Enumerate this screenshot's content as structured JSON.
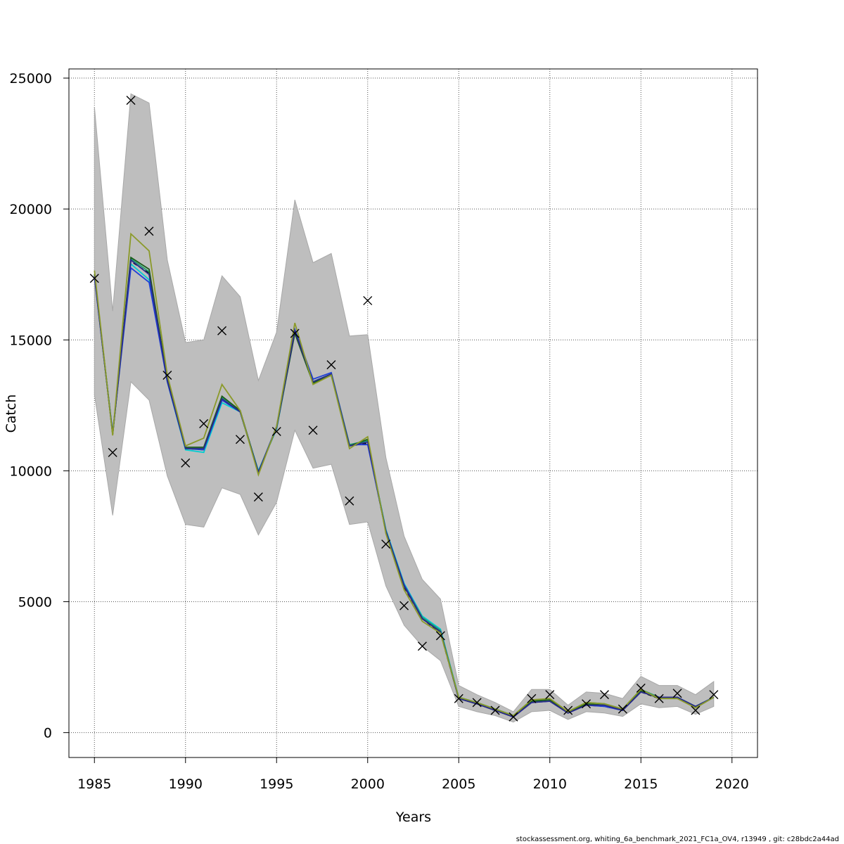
{
  "chart_data": {
    "type": "line",
    "xlabel": "Years",
    "ylabel": "Catch",
    "xlim": [
      1983.6,
      2021.4
    ],
    "ylim": [
      -950,
      25350
    ],
    "xticks": [
      1985,
      1990,
      1995,
      2000,
      2005,
      2010,
      2015,
      2020
    ],
    "yticks": [
      0,
      5000,
      10000,
      15000,
      20000,
      25000
    ],
    "grid": true,
    "legend": "none",
    "footer": "stockassessment.org, whiting_6a_benchmark_2021_FC1a_OV4, r13949 , git: c28bdc2a44ad",
    "x": [
      1985,
      1986,
      1987,
      1988,
      1989,
      1990,
      1991,
      1992,
      1993,
      1994,
      1995,
      1996,
      1997,
      1998,
      1999,
      2000,
      2001,
      2002,
      2003,
      2004,
      2005,
      2006,
      2007,
      2008,
      2009,
      2010,
      2011,
      2012,
      2013,
      2014,
      2015,
      2016,
      2017,
      2018,
      2019
    ],
    "band": {
      "lower": [
        12900,
        8300,
        13400,
        12700,
        9800,
        7950,
        7850,
        9350,
        9100,
        7550,
        8800,
        11550,
        10100,
        10250,
        7950,
        8050,
        5600,
        4100,
        3300,
        2750,
        1000,
        800,
        650,
        400,
        800,
        850,
        500,
        800,
        750,
        620,
        1100,
        950,
        1000,
        700,
        1000
      ],
      "upper": [
        23900,
        16100,
        24400,
        24050,
        18050,
        14900,
        15000,
        17450,
        16650,
        13450,
        15300,
        20350,
        17950,
        18300,
        15150,
        15200,
        10500,
        7500,
        5850,
        5100,
        1800,
        1450,
        1150,
        800,
        1650,
        1650,
        1050,
        1550,
        1500,
        1300,
        2150,
        1800,
        1800,
        1450,
        1950
      ],
      "color": "#bebebe"
    },
    "observed": {
      "marker": "x",
      "values": [
        17350,
        10700,
        24150,
        19150,
        13650,
        10300,
        11800,
        15350,
        11200,
        9000,
        11500,
        15250,
        11550,
        14050,
        8850,
        16500,
        7200,
        4850,
        3300,
        3700,
        1300,
        1150,
        850,
        600,
        1300,
        1450,
        850,
        1100,
        1450,
        900,
        1700,
        1300,
        1500,
        850,
        1450
      ]
    },
    "series": [
      {
        "color": "#000000",
        "dashed": true,
        "values": [
          17500,
          11400,
          18000,
          17550,
          13500,
          10850,
          10800,
          12700,
          12250,
          9900,
          11650,
          15400,
          13350,
          13700,
          10950,
          11050,
          7650,
          5550,
          4350,
          3800,
          1300,
          1100,
          850,
          600,
          1150,
          1200,
          750,
          1050,
          1000,
          850,
          1550,
          1300,
          1350,
          1000,
          1350
        ]
      },
      {
        "color": "#00ced1",
        "values": [
          17450,
          11450,
          17900,
          17300,
          13400,
          10800,
          10700,
          12600,
          12250,
          10000,
          11600,
          15300,
          13400,
          13700,
          11000,
          11100,
          7750,
          5700,
          4450,
          3950,
          1350,
          1150,
          900,
          650,
          1200,
          1250,
          800,
          1100,
          1050,
          900,
          1600,
          1350,
          1350,
          1000,
          1350
        ]
      },
      {
        "color": "#1e3fd9",
        "values": [
          17400,
          11450,
          17750,
          17200,
          13400,
          10850,
          10800,
          12700,
          12250,
          9950,
          11700,
          15400,
          13500,
          13750,
          11000,
          11000,
          7700,
          5650,
          4400,
          3900,
          1300,
          1100,
          850,
          600,
          1150,
          1200,
          750,
          1050,
          1000,
          850,
          1550,
          1350,
          1350,
          1000,
          1350
        ]
      },
      {
        "color": "#20a070",
        "values": [
          17500,
          11400,
          18100,
          17600,
          13500,
          10850,
          10850,
          12800,
          12250,
          9950,
          11650,
          15300,
          13400,
          13700,
          11000,
          11150,
          7700,
          5600,
          4400,
          3900,
          1350,
          1150,
          900,
          650,
          1250,
          1250,
          800,
          1150,
          1100,
          900,
          1650,
          1350,
          1350,
          1000,
          1350
        ]
      },
      {
        "color": "#1a5c1a",
        "values": [
          17500,
          11400,
          18150,
          17700,
          13500,
          10900,
          10900,
          12850,
          12300,
          9950,
          11650,
          15250,
          13350,
          13650,
          10950,
          11200,
          7650,
          5600,
          4350,
          3850,
          1300,
          1100,
          850,
          600,
          1200,
          1250,
          750,
          1100,
          1050,
          900,
          1600,
          1300,
          1350,
          950,
          1350
        ]
      },
      {
        "color": "#2a2a8a",
        "values": [
          17450,
          11400,
          18050,
          17500,
          13450,
          10850,
          10850,
          12750,
          12250,
          9950,
          11650,
          15350,
          13400,
          13700,
          10950,
          11100,
          7700,
          5600,
          4350,
          3850,
          1300,
          1100,
          850,
          600,
          1150,
          1200,
          750,
          1050,
          1050,
          850,
          1550,
          1350,
          1350,
          1000,
          1350
        ]
      },
      {
        "color": "#8b9a2a",
        "values": [
          17650,
          11350,
          19050,
          18400,
          13650,
          10950,
          11250,
          13300,
          12300,
          9850,
          11700,
          15650,
          13300,
          13650,
          10850,
          11300,
          7600,
          5450,
          4250,
          3800,
          1350,
          1150,
          900,
          650,
          1250,
          1300,
          800,
          1150,
          1100,
          900,
          1650,
          1300,
          1300,
          950,
          1350
        ]
      }
    ]
  }
}
